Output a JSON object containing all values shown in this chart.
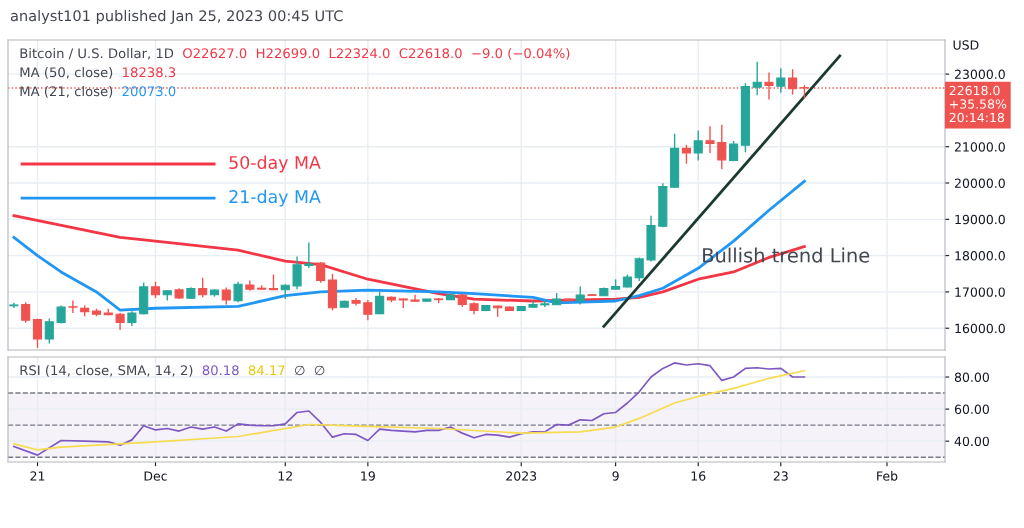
{
  "chart_data": [
    {
      "type": "candlestick",
      "title": "analyst101 published Jan 25, 2023 00:45 UTC",
      "ylabel": "USD",
      "annotations": [
        "Bitcoin / U.S. Dollar, 1D",
        "O22627.0  H22699.0  L22324.0  C22618.0  −9.0 (−0.04%)",
        "MA (50, close)",
        "18238.3",
        "MA (21, close)",
        "20073.0",
        "Bullish trend Line"
      ],
      "xlim": [
        "2022-11-18T12:00",
        "2023-02-05T22:00"
      ],
      "ylim": [
        15400,
        23940
      ],
      "xticks": [
        {
          "value": "2022-11-21",
          "label": null
        },
        {
          "value": "2022-12-01",
          "label": null
        },
        {
          "value": "2022-12-12",
          "label": null
        },
        {
          "value": "2022-12-19",
          "label": null
        },
        {
          "value": "2023-01-01",
          "label": null
        },
        {
          "value": "2023-01-09",
          "label": null
        },
        {
          "value": "2023-01-16",
          "label": null
        },
        {
          "value": "2023-01-23",
          "label": null
        },
        {
          "value": "2023-02-01",
          "label": null
        }
      ],
      "yticks": [
        {
          "value": 16000,
          "label": "16000.0"
        },
        {
          "value": 17000,
          "label": "17000.0"
        },
        {
          "value": 18000,
          "label": "18000.0"
        },
        {
          "value": 19000,
          "label": "19000.0"
        },
        {
          "value": 20000,
          "label": "20000.0"
        },
        {
          "value": 21000,
          "label": "21000.0"
        },
        {
          "value": 23000,
          "label": "23000.0"
        }
      ],
      "tick_labels": "y",
      "grid": true,
      "ref_lines": [
        {
          "axis": "y",
          "value": 22618,
          "label": "22618.0\n+35.58%\n20:14:18",
          "color": "#ef5350",
          "line_style": "dotted"
        }
      ],
      "series": [
        {
          "type": "line",
          "name": "50-day MA",
          "color": "#f23645",
          "x": [
            "2022-11-19",
            "2022-11-28",
            "2022-12-01",
            "2022-12-08",
            "2022-12-12",
            "2022-12-15",
            "2022-12-19",
            "2022-12-25",
            "2022-12-28",
            "2023-01-02",
            "2023-01-09",
            "2023-01-11",
            "2023-01-13",
            "2023-01-16",
            "2023-01-19",
            "2023-01-22",
            "2023-01-25"
          ],
          "values": [
            19100,
            18500,
            18400,
            18150,
            17850,
            17750,
            17350,
            16950,
            16800,
            16750,
            16800,
            16850,
            17000,
            17350,
            17550,
            17950,
            18250
          ]
        },
        {
          "type": "line",
          "name": "21-day MA",
          "color": "#2196f3",
          "x": [
            "2022-11-19",
            "2022-11-21",
            "2022-11-23",
            "2022-11-26",
            "2022-11-28",
            "2022-12-01",
            "2022-12-08",
            "2022-12-12",
            "2022-12-15",
            "2022-12-19",
            "2022-12-25",
            "2022-12-28",
            "2023-01-02",
            "2023-01-04",
            "2023-01-09",
            "2023-01-11",
            "2023-01-13",
            "2023-01-16",
            "2023-01-19",
            "2023-01-22",
            "2023-01-25"
          ],
          "values": [
            18500,
            18000,
            17550,
            17000,
            16500,
            16550,
            16600,
            16900,
            17000,
            17050,
            17000,
            16950,
            16850,
            16700,
            16750,
            16900,
            17100,
            17650,
            18400,
            19250,
            20050
          ]
        },
        {
          "type": "line",
          "color": "#1b3a2e",
          "x": [
            "2023-01-08",
            "2023-01-28"
          ],
          "values": [
            16050,
            23500
          ]
        },
        {
          "type": "candlestick",
          "x": [
            "2022-11-19",
            "2022-11-20",
            "2022-11-21",
            "2022-11-22",
            "2022-11-23",
            "2022-11-24",
            "2022-11-25",
            "2022-11-26",
            "2022-11-27",
            "2022-11-28",
            "2022-11-29",
            "2022-11-30",
            "2022-12-01",
            "2022-12-02",
            "2022-12-03",
            "2022-12-04",
            "2022-12-05",
            "2022-12-06",
            "2022-12-07",
            "2022-12-08",
            "2022-12-09",
            "2022-12-10",
            "2022-12-11",
            "2022-12-12",
            "2022-12-13",
            "2022-12-14",
            "2022-12-15",
            "2022-12-16",
            "2022-12-17",
            "2022-12-18",
            "2022-12-19",
            "2022-12-20",
            "2022-12-21",
            "2022-12-22",
            "2022-12-23",
            "2022-12-24",
            "2022-12-25",
            "2022-12-26",
            "2022-12-27",
            "2022-12-28",
            "2022-12-29",
            "2022-12-30",
            "2022-12-31",
            "2023-01-01",
            "2023-01-02",
            "2023-01-03",
            "2023-01-04",
            "2023-01-05",
            "2023-01-06",
            "2023-01-07",
            "2023-01-08",
            "2023-01-09",
            "2023-01-10",
            "2023-01-11",
            "2023-01-12",
            "2023-01-13",
            "2023-01-14",
            "2023-01-15",
            "2023-01-16",
            "2023-01-17",
            "2023-01-18",
            "2023-01-19",
            "2023-01-20",
            "2023-01-21",
            "2023-01-22",
            "2023-01-23",
            "2023-01-24",
            "2023-01-25"
          ],
          "ohlc": [
            [
              16620,
              16700,
              16560,
              16640
            ],
            [
              16654,
              16716,
              16151,
              16223
            ],
            [
              16241,
              16260,
              15460,
              15702
            ],
            [
              15702,
              16268,
              15576,
              16178
            ],
            [
              16160,
              16627,
              16133,
              16582
            ],
            [
              16590,
              16761,
              16420,
              16580
            ],
            [
              16546,
              16627,
              16330,
              16456
            ],
            [
              16474,
              16537,
              16330,
              16384
            ],
            [
              16420,
              16537,
              16357,
              16375
            ],
            [
              16384,
              16420,
              15953,
              16160
            ],
            [
              16160,
              16465,
              16061,
              16420
            ],
            [
              16402,
              17255,
              16380,
              17138
            ],
            [
              17138,
              17282,
              16833,
              16923
            ],
            [
              16923,
              17049,
              16761,
              17030
            ],
            [
              17057,
              17102,
              16806,
              16833
            ],
            [
              16824,
              17130,
              16806,
              17093
            ],
            [
              17093,
              17390,
              16851,
              16923
            ],
            [
              16923,
              17076,
              16869,
              17049
            ],
            [
              17049,
              17120,
              16654,
              16779
            ],
            [
              16761,
              17282,
              16716,
              17210
            ],
            [
              17192,
              17318,
              17030,
              17075
            ],
            [
              17102,
              17183,
              17070,
              17075
            ],
            [
              17093,
              17480,
              17050,
              17058
            ],
            [
              17058,
              17210,
              16806,
              17183
            ],
            [
              17165,
              17973,
              17075,
              17749
            ],
            [
              17731,
              18359,
              17659,
              17767
            ],
            [
              17794,
              17820,
              17255,
              17318
            ],
            [
              17327,
              17497,
              16492,
              16564
            ],
            [
              16582,
              16760,
              16570,
              16743
            ],
            [
              16761,
              16833,
              16627,
              16690
            ],
            [
              16698,
              16779,
              16223,
              16384
            ],
            [
              16402,
              17012,
              16384,
              16878
            ],
            [
              16851,
              16878,
              16716,
              16779
            ],
            [
              16806,
              16810,
              16555,
              16779
            ],
            [
              16779,
              16923,
              16740,
              16743
            ],
            [
              16743,
              16815,
              16735,
              16806
            ],
            [
              16806,
              16833,
              16690,
              16788
            ],
            [
              16788,
              16930,
              16780,
              16914
            ],
            [
              16914,
              16941,
              16582,
              16654
            ],
            [
              16672,
              16716,
              16384,
              16492
            ],
            [
              16492,
              16640,
              16470,
              16627
            ],
            [
              16609,
              16620,
              16313,
              16564
            ],
            [
              16582,
              16600,
              16474,
              16492
            ],
            [
              16492,
              16610,
              16480,
              16600
            ],
            [
              16582,
              16743,
              16564,
              16654
            ],
            [
              16645,
              16761,
              16582,
              16672
            ],
            [
              16645,
              16968,
              16640,
              16806
            ],
            [
              16806,
              16815,
              16743,
              16761
            ],
            [
              16761,
              17147,
              16654,
              16914
            ],
            [
              16923,
              16930,
              16900,
              16905
            ],
            [
              16896,
              17120,
              16890,
              17093
            ],
            [
              17075,
              17344,
              17070,
              17147
            ],
            [
              17138,
              17479,
              17120,
              17407
            ],
            [
              17389,
              17946,
              17300,
              17910
            ],
            [
              17883,
              19095,
              17838,
              18826
            ],
            [
              18808,
              19993,
              18781,
              19903
            ],
            [
              19885,
              21357,
              19870,
              20953
            ],
            [
              20953,
              21052,
              20532,
              20828
            ],
            [
              20828,
              21447,
              20621,
              21160
            ],
            [
              21160,
              21564,
              20828,
              21088
            ],
            [
              21115,
              21608,
              20379,
              20639
            ],
            [
              20621,
              21160,
              20600,
              21070
            ],
            [
              21043,
              22749,
              20845,
              22659
            ],
            [
              22641,
              23341,
              22417,
              22776
            ],
            [
              22776,
              23045,
              22300,
              22686
            ],
            [
              22668,
              23162,
              22488,
              22892
            ],
            [
              22892,
              23135,
              22435,
              22596
            ],
            [
              22627,
              22699,
              22324,
              22618
            ]
          ],
          "colors": [
            "#26a69a",
            "#ef5350",
            "#ef5350",
            "#26a69a",
            "#26a69a",
            "#ef5350",
            "#ef5350",
            "#ef5350",
            "#ef5350",
            "#ef5350",
            "#26a69a",
            "#26a69a",
            "#ef5350",
            "#26a69a",
            "#ef5350",
            "#26a69a",
            "#ef5350",
            "#26a69a",
            "#ef5350",
            "#26a69a",
            "#ef5350",
            "#ef5350",
            "#ef5350",
            "#26a69a",
            "#26a69a",
            "#26a69a",
            "#ef5350",
            "#ef5350",
            "#26a69a",
            "#ef5350",
            "#ef5350",
            "#26a69a",
            "#ef5350",
            "#ef5350",
            "#ef5350",
            "#26a69a",
            "#ef5350",
            "#26a69a",
            "#ef5350",
            "#ef5350",
            "#26a69a",
            "#ef5350",
            "#ef5350",
            "#26a69a",
            "#26a69a",
            "#26a69a",
            "#26a69a",
            "#ef5350",
            "#26a69a",
            "#ef5350",
            "#26a69a",
            "#26a69a",
            "#26a69a",
            "#26a69a",
            "#26a69a",
            "#26a69a",
            "#26a69a",
            "#ef5350",
            "#26a69a",
            "#ef5350",
            "#ef5350",
            "#26a69a",
            "#26a69a",
            "#26a69a",
            "#ef5350",
            "#26a69a",
            "#ef5350",
            "#ef5350"
          ]
        }
      ]
    },
    {
      "type": "line",
      "annotations": [
        "RSI (14, close, SMA, 14, 2)",
        "80.18",
        "84.17",
        "∅",
        "∅"
      ],
      "xlim": [
        "2022-11-18T12:00",
        "2023-02-05T22:00"
      ],
      "ylim": [
        27,
        92.5
      ],
      "xticks": [
        {
          "value": "2022-11-21",
          "label": "21"
        },
        {
          "value": "2022-12-01",
          "label": "Dec"
        },
        {
          "value": "2022-12-12",
          "label": "12"
        },
        {
          "value": "2022-12-19",
          "label": "19"
        },
        {
          "value": "2023-01-01",
          "label": "2023"
        },
        {
          "value": "2023-01-09",
          "label": "9"
        },
        {
          "value": "2023-01-16",
          "label": "16"
        },
        {
          "value": "2023-01-23",
          "label": "23"
        },
        {
          "value": "2023-02-01",
          "label": "Feb"
        }
      ],
      "yticks": [
        {
          "value": 40,
          "label": "40.00"
        },
        {
          "value": 60,
          "label": "60.00"
        },
        {
          "value": 80,
          "label": "80.00"
        }
      ],
      "grid": true,
      "ref_lines": [
        {
          "axis": "y",
          "value": 70,
          "color": "#787b86",
          "line_style": "dashed"
        },
        {
          "axis": "y",
          "value": 50,
          "color": "#787b86",
          "line_style": "dashed"
        },
        {
          "axis": "y",
          "value": 30,
          "color": "#787b86",
          "line_style": "dashed"
        }
      ],
      "bands": [
        {
          "axis": "y",
          "from": 30,
          "to": 70,
          "color": "#7e57c2"
        }
      ],
      "series": [
        {
          "color": "#7e57c2",
          "x": [
            "2022-11-19",
            "2022-11-21",
            "2022-11-23",
            "2022-11-25",
            "2022-11-27",
            "2022-11-28",
            "2022-11-29",
            "2022-11-30",
            "2022-12-01",
            "2022-12-02",
            "2022-12-03",
            "2022-12-04",
            "2022-12-05",
            "2022-12-06",
            "2022-12-07",
            "2022-12-08",
            "2022-12-09",
            "2022-12-10",
            "2022-12-11",
            "2022-12-12",
            "2022-12-13",
            "2022-12-14",
            "2022-12-15",
            "2022-12-16",
            "2022-12-17",
            "2022-12-18",
            "2022-12-19",
            "2022-12-20",
            "2022-12-21",
            "2022-12-22",
            "2022-12-23",
            "2022-12-24",
            "2022-12-25",
            "2022-12-26",
            "2022-12-27",
            "2022-12-28",
            "2022-12-29",
            "2022-12-30",
            "2022-12-31",
            "2023-01-01",
            "2023-01-02",
            "2023-01-03",
            "2023-01-04",
            "2023-01-05",
            "2023-01-06",
            "2023-01-07",
            "2023-01-08",
            "2023-01-09",
            "2023-01-10",
            "2023-01-11",
            "2023-01-12",
            "2023-01-13",
            "2023-01-14",
            "2023-01-15",
            "2023-01-16",
            "2023-01-17",
            "2023-01-18",
            "2023-01-19",
            "2023-01-20",
            "2023-01-21",
            "2023-01-22",
            "2023-01-23",
            "2023-01-24",
            "2023-01-25"
          ],
          "values": [
            36.7,
            31.3,
            40.4,
            40,
            39.6,
            37.5,
            40.8,
            49.6,
            47,
            47.9,
            46.3,
            48.8,
            47.5,
            48.8,
            46.3,
            50.8,
            50,
            49.6,
            49.6,
            50.8,
            57.9,
            58.8,
            51.7,
            42.5,
            44.6,
            44.2,
            40.4,
            47.5,
            46.7,
            46.3,
            45.8,
            46.7,
            46.7,
            48.8,
            45,
            42.1,
            44.2,
            43.8,
            42.5,
            44.6,
            45.8,
            45.8,
            50.4,
            50,
            53.3,
            52.9,
            57.1,
            57.9,
            63.8,
            70.8,
            80,
            85.4,
            88.8,
            87.5,
            88.3,
            87.1,
            77.9,
            80,
            85.4,
            85.8,
            85,
            85.4,
            80,
            80
          ]
        },
        {
          "color": "#f7dc4f",
          "x": [
            "2022-11-19",
            "2022-11-21",
            "2022-11-23",
            "2022-12-01",
            "2022-12-08",
            "2022-12-14",
            "2022-12-19",
            "2022-12-25",
            "2023-01-01",
            "2023-01-06",
            "2023-01-09",
            "2023-01-11",
            "2023-01-14",
            "2023-01-16",
            "2023-01-19",
            "2023-01-22",
            "2023-01-25"
          ],
          "values": [
            38.3,
            34.6,
            36.3,
            39.6,
            42.9,
            50.4,
            49.2,
            47.9,
            45,
            45.8,
            48.8,
            54.2,
            63.8,
            67.9,
            72.9,
            79.2,
            84
          ]
        }
      ]
    }
  ]
}
